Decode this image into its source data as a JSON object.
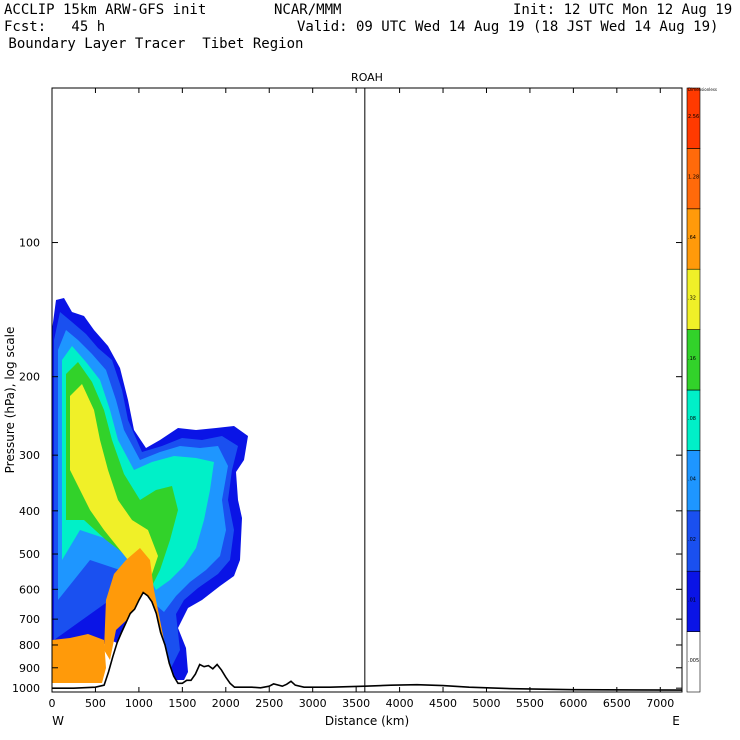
{
  "header": {
    "line1_left": "ACCLIP 15km ARW-GFS init",
    "line1_mid": "NCAR/MMM",
    "line1_right": "Init: 12 UTC Mon 12 Aug 19",
    "line2_left": "Fcst:   45 h",
    "line2_right": "Valid: 09 UTC Wed 14 Aug 19 (18 JST Wed 14 Aug 19)",
    "line3": " Boundary Layer Tracer  Tibet Region"
  },
  "chart_data": {
    "type": "heatmap",
    "title": "ROAH",
    "xlabel": "Distance (km)",
    "ylabel": "Pressure (hPa), log scale",
    "x_ticks": [
      0,
      500,
      1000,
      1500,
      2000,
      2500,
      3000,
      3500,
      4000,
      4500,
      5000,
      5500,
      6000,
      6500,
      7000
    ],
    "xlim": [
      0,
      7250
    ],
    "y_ticks": [
      100,
      200,
      300,
      400,
      500,
      600,
      700,
      800,
      900,
      1000
    ],
    "ylim": [
      1020,
      45
    ],
    "y_scale": "log",
    "x_end_labels": {
      "left": "W",
      "right": "E"
    },
    "vertical_marker_km": 3600,
    "colorbar": {
      "levels": [
        ".005",
        ".01",
        ".02",
        ".04",
        ".08",
        ".16",
        ".32",
        ".64",
        "1.28",
        "2.56",
        "Dimensionless"
      ],
      "colors": [
        "#ffffff",
        "#0a14e6",
        "#1a50f0",
        "#1e96ff",
        "#00f0c8",
        "#32d22a",
        "#f0f028",
        "#ff9a0a",
        "#ff6a0a",
        "#ff3a00"
      ]
    },
    "terrain": [
      [
        0,
        1000
      ],
      [
        250,
        1000
      ],
      [
        500,
        995
      ],
      [
        600,
        985
      ],
      [
        650,
        920
      ],
      [
        700,
        850
      ],
      [
        750,
        790
      ],
      [
        800,
        750
      ],
      [
        900,
        680
      ],
      [
        950,
        665
      ],
      [
        1000,
        635
      ],
      [
        1050,
        610
      ],
      [
        1100,
        620
      ],
      [
        1150,
        640
      ],
      [
        1200,
        680
      ],
      [
        1250,
        750
      ],
      [
        1300,
        800
      ],
      [
        1350,
        880
      ],
      [
        1400,
        940
      ],
      [
        1450,
        975
      ],
      [
        1500,
        975
      ],
      [
        1550,
        960
      ],
      [
        1600,
        960
      ],
      [
        1650,
        930
      ],
      [
        1700,
        885
      ],
      [
        1750,
        895
      ],
      [
        1800,
        890
      ],
      [
        1850,
        905
      ],
      [
        1900,
        885
      ],
      [
        1950,
        910
      ],
      [
        2000,
        945
      ],
      [
        2050,
        975
      ],
      [
        2100,
        995
      ],
      [
        2300,
        995
      ],
      [
        2400,
        998
      ],
      [
        2500,
        990
      ],
      [
        2550,
        978
      ],
      [
        2650,
        990
      ],
      [
        2700,
        980
      ],
      [
        2750,
        965
      ],
      [
        2800,
        985
      ],
      [
        2900,
        995
      ],
      [
        3200,
        995
      ],
      [
        3600,
        990
      ],
      [
        3900,
        985
      ],
      [
        4200,
        982
      ],
      [
        4500,
        987
      ],
      [
        4800,
        995
      ],
      [
        5300,
        1003
      ],
      [
        6000,
        1008
      ],
      [
        7250,
        1010
      ]
    ]
  }
}
